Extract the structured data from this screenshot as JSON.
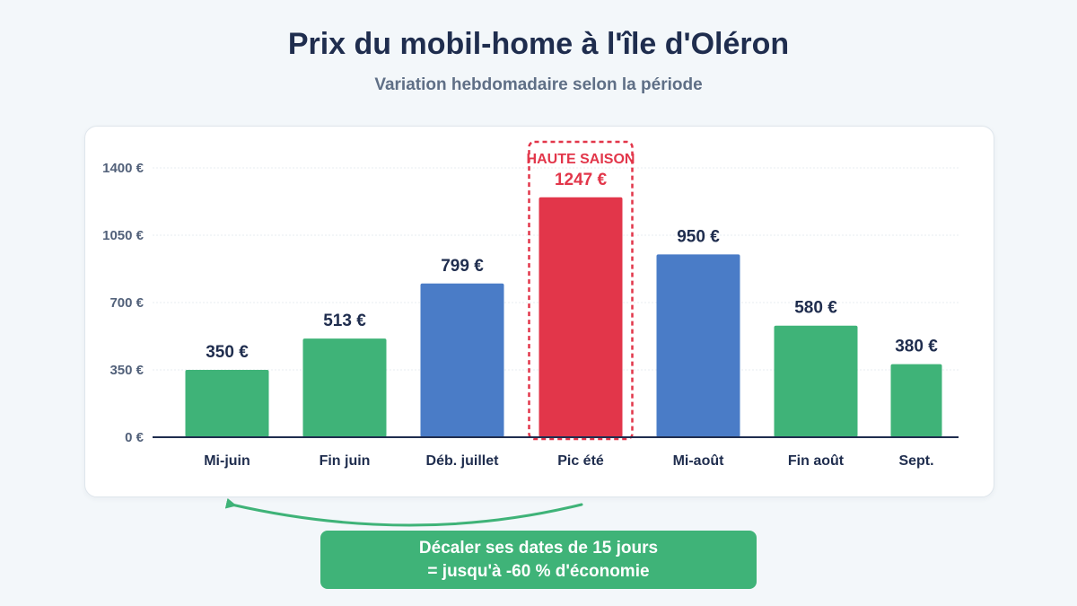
{
  "title": "Prix du mobil-home à l'île d'Oléron",
  "subtitle": "Variation hebdomadaire selon la période",
  "chart_data": {
    "type": "bar",
    "categories": [
      "Mi-juin",
      "Fin juin",
      "Déb. juillet",
      "Pic été",
      "Mi-août",
      "Fin août",
      "Sept."
    ],
    "values": [
      350,
      513,
      799,
      1247,
      950,
      580,
      380
    ],
    "value_labels": [
      "350 €",
      "513 €",
      "799 €",
      "1247 €",
      "950 €",
      "580 €",
      "380 €"
    ],
    "y_ticks": [
      0,
      350,
      700,
      1050,
      1400
    ],
    "y_tick_labels": [
      "0 €",
      "350 €",
      "700 €",
      "1050 €",
      "1400 €"
    ],
    "ylim": [
      0,
      1400
    ],
    "grid": true,
    "bar_colors": [
      "#3fb378",
      "#3fb378",
      "#4a7cc7",
      "#e2364a",
      "#4a7cc7",
      "#3fb378",
      "#3fb378"
    ],
    "highlight": {
      "category": "Pic été",
      "label": "HAUTE SAISON",
      "color": "#e2364a"
    },
    "annotation": {
      "line1": "Décaler ses dates de 15 jours",
      "line2": "= jusqu'à -60 % d'économie",
      "color": "#3fb378"
    }
  }
}
